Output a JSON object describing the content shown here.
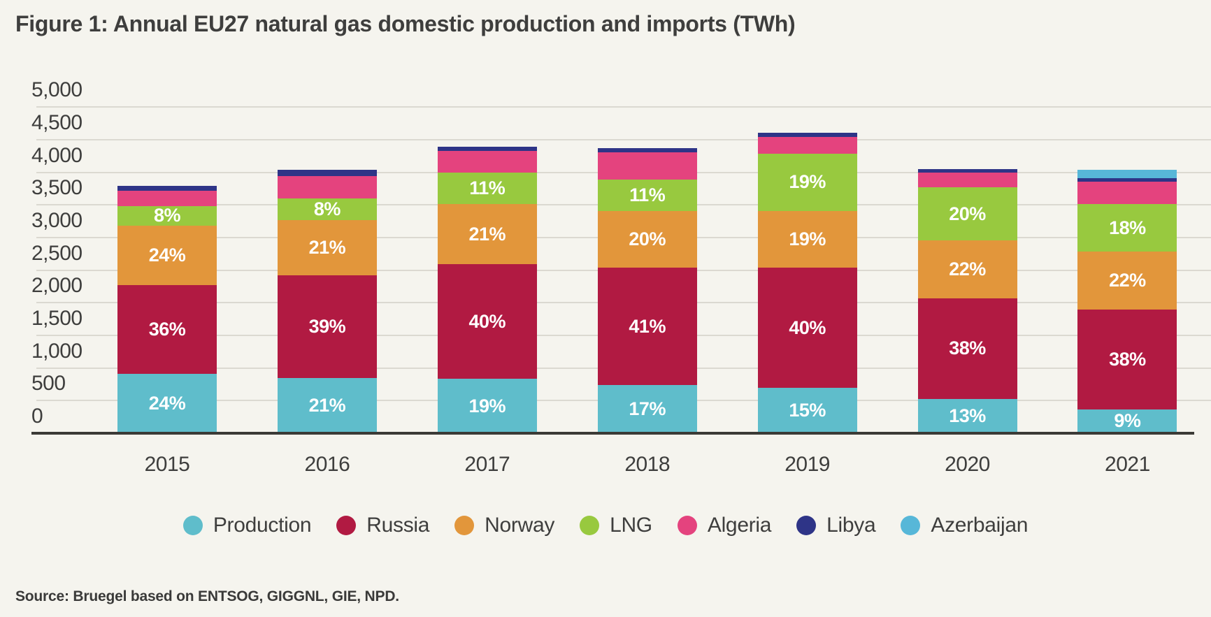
{
  "figure": {
    "title": "Figure 1: Annual EU27 natural gas domestic production and imports (TWh)",
    "source": "Source: Bruegel based on ENTSOG, GIGGNL, GIE, NPD."
  },
  "chart_data": {
    "type": "bar",
    "stacked": true,
    "title": "Figure 1: Annual EU27 natural gas domestic production and imports (TWh)",
    "unit": "TWh",
    "categories": [
      "2015",
      "2016",
      "2017",
      "2018",
      "2019",
      "2020",
      "2021"
    ],
    "totals_twh": [
      3790,
      4040,
      4390,
      4370,
      4610,
      4050,
      4035
    ],
    "series": [
      {
        "name": "Production",
        "color": "#5fbdcb",
        "pct": [
          24,
          21,
          19,
          17,
          15,
          13,
          9
        ],
        "labels": [
          "24%",
          "21%",
          "19%",
          "17%",
          "15%",
          "13%",
          "9%"
        ]
      },
      {
        "name": "Russia",
        "color": "#b11a42",
        "pct": [
          36,
          39,
          40,
          41,
          40,
          38,
          38
        ],
        "labels": [
          "36%",
          "39%",
          "40%",
          "41%",
          "40%",
          "38%",
          "38%"
        ]
      },
      {
        "name": "Norway",
        "color": "#e2963b",
        "pct": [
          24,
          21,
          21,
          20,
          19,
          22,
          22
        ],
        "labels": [
          "24%",
          "21%",
          "21%",
          "20%",
          "19%",
          "22%",
          "22%"
        ]
      },
      {
        "name": "LNG",
        "color": "#98c93f",
        "pct": [
          8,
          8,
          11,
          11,
          19,
          20,
          18
        ],
        "labels": [
          "8%",
          "8%",
          "11%",
          "11%",
          "19%",
          "20%",
          "18%"
        ]
      },
      {
        "name": "Algeria",
        "color": "#e4437e",
        "pct": [
          6.2,
          8.6,
          7.6,
          9.6,
          5.5,
          5.7,
          8.5
        ],
        "labels": null
      },
      {
        "name": "Libya",
        "color": "#2e3487",
        "pct": [
          1.8,
          2.4,
          1.4,
          1.4,
          1.5,
          1.3,
          1.3
        ],
        "labels": null
      },
      {
        "name": "Azerbaijan",
        "color": "#57b7d8",
        "pct": [
          0,
          0,
          0,
          0,
          0,
          0,
          3.2
        ],
        "labels": null
      }
    ],
    "y_axis": {
      "min": 0,
      "max": 5000,
      "step": 500,
      "tick_labels": [
        "0",
        "500",
        "1,000",
        "1,500",
        "2,000",
        "2,500",
        "3,000",
        "3,500",
        "4,000",
        "4,500",
        "5,000"
      ]
    },
    "legend": {
      "position": "bottom",
      "entries": [
        "Production",
        "Russia",
        "Norway",
        "LNG",
        "Algeria",
        "Libya",
        "Azerbaijan"
      ]
    },
    "grid": true
  }
}
